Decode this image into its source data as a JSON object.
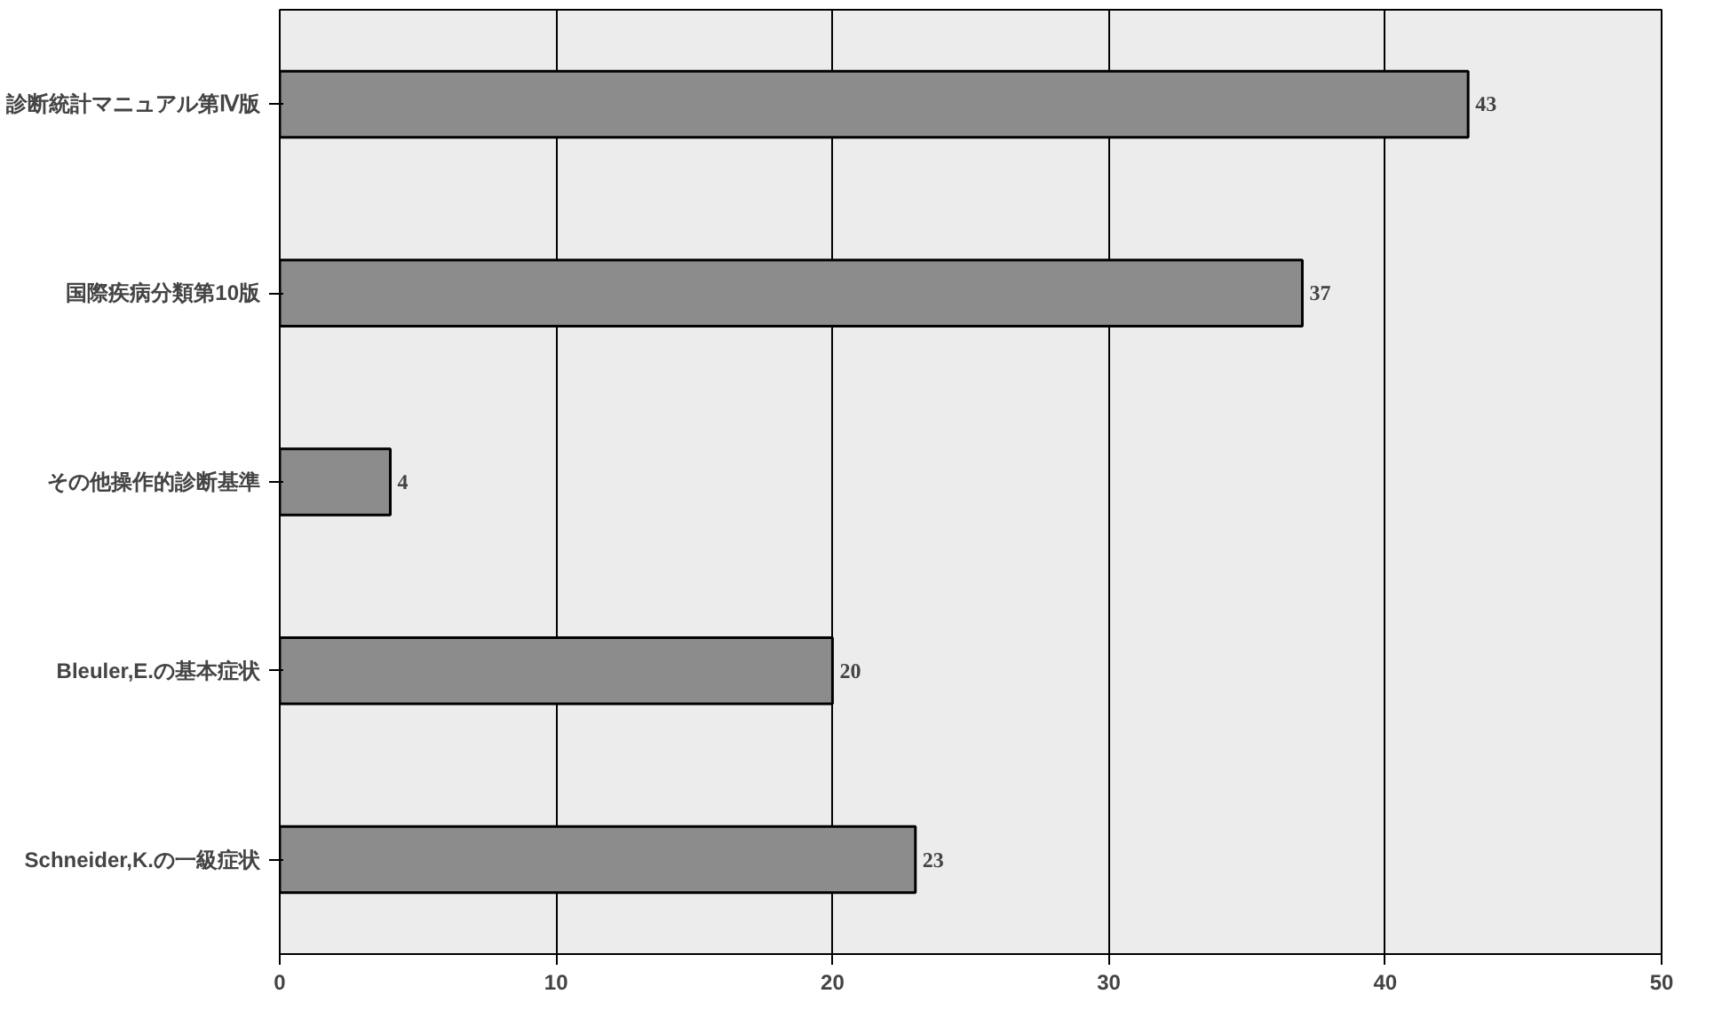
{
  "chart_data": {
    "type": "bar",
    "orientation": "horizontal",
    "categories": [
      "診断統計マニュアル第Ⅳ版",
      "国際疾病分類第10版",
      "その他操作的診断基準",
      "Bleuler,E.の基本症状",
      "Schneider,K.の一級症状"
    ],
    "values": [
      43,
      37,
      4,
      20,
      23
    ],
    "color": "#8c8c8c",
    "xlim": [
      0,
      50
    ],
    "xticks": [
      0,
      10,
      20,
      30,
      40,
      50
    ],
    "grid": "x",
    "data_labels": true
  }
}
